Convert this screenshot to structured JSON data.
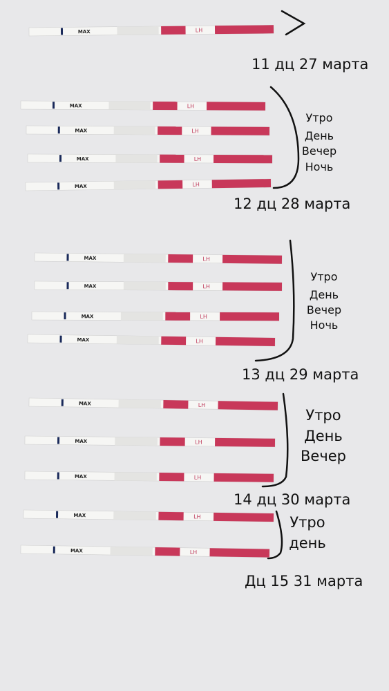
{
  "strip": {
    "max": "MAX",
    "lh": "LH"
  },
  "groups": [
    {
      "date": "11 дц 27 марта"
    },
    {
      "date": "12 дц 28 марта",
      "times": [
        "Утро",
        "День",
        "Вечер",
        "Ночь"
      ]
    },
    {
      "date": "13 дц 29 марта",
      "times": [
        "Утро",
        "День",
        "Вечер",
        "Ночь"
      ]
    },
    {
      "date": "14 дц 30 марта",
      "times": [
        "Утро",
        "День",
        "Вечер"
      ]
    },
    {
      "date": "Дц 15 31 марта",
      "times": [
        "Утро",
        "день"
      ]
    }
  ]
}
